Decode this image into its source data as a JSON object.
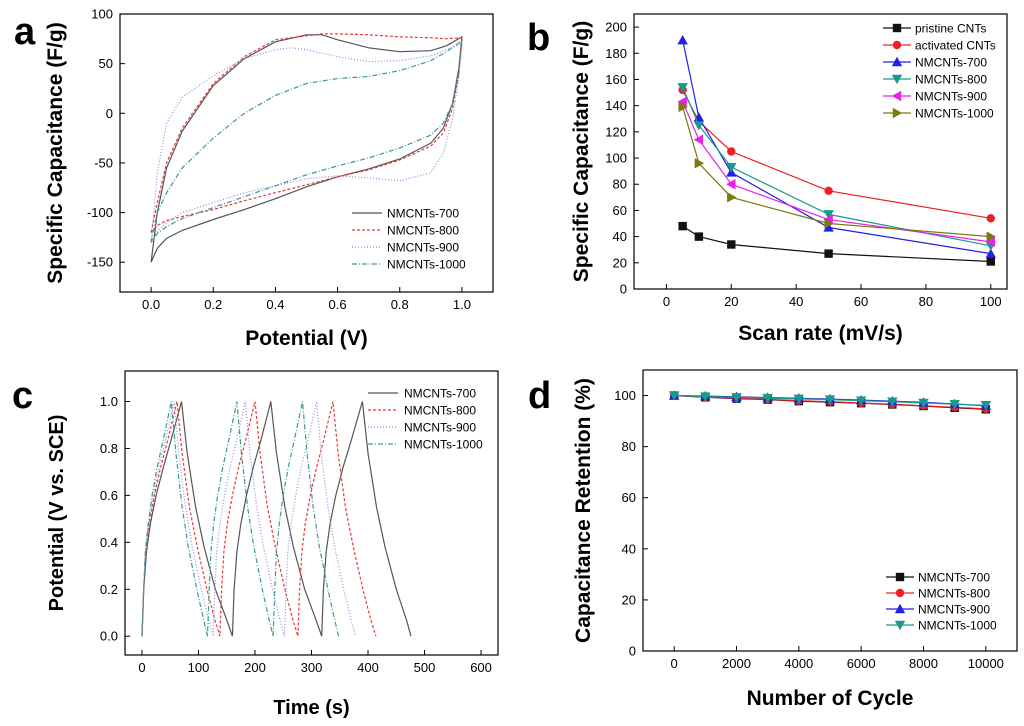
{
  "chart_data": [
    {
      "id": "a",
      "panel_label": "a",
      "type": "line",
      "xlabel": "Potential (V)",
      "ylabel": "Specific Capacitance (F/g)",
      "xlim": [
        -0.1,
        1.1
      ],
      "ylim": [
        -180,
        100
      ],
      "xticks": [
        0.0,
        0.2,
        0.4,
        0.6,
        0.8,
        1.0
      ],
      "xtick_labels": [
        "0.0",
        "0.2",
        "0.4",
        "0.6",
        "0.8",
        "1.0"
      ],
      "yticks": [
        -150,
        -100,
        -50,
        0,
        50,
        100
      ],
      "ytick_labels": [
        "-150",
        "-100",
        "-50",
        "0",
        "50",
        "100"
      ],
      "legend_position": "bottom-right",
      "series": [
        {
          "name": "NMCNTs-700",
          "color": "#555555",
          "dash": "none",
          "x": [
            0.0,
            0.02,
            0.05,
            0.1,
            0.2,
            0.3,
            0.4,
            0.5,
            0.55,
            0.6,
            0.7,
            0.8,
            0.9,
            0.95,
            1.0,
            1.0,
            0.99,
            0.97,
            0.94,
            0.9,
            0.8,
            0.7,
            0.6,
            0.5,
            0.4,
            0.3,
            0.2,
            0.1,
            0.05,
            0.02,
            0.0
          ],
          "y": [
            -150,
            -100,
            -55,
            -18,
            28,
            55,
            72,
            79,
            79,
            74,
            66,
            62,
            63,
            68,
            77,
            77,
            45,
            10,
            -15,
            -30,
            -46,
            -56,
            -64,
            -74,
            -86,
            -97,
            -107,
            -118,
            -126,
            -136,
            -150
          ]
        },
        {
          "name": "NMCNTs-800",
          "color": "#e83a3a",
          "dash": "3,2",
          "x": [
            0.0,
            0.02,
            0.05,
            0.1,
            0.2,
            0.3,
            0.4,
            0.5,
            0.55,
            0.6,
            0.7,
            0.8,
            0.9,
            0.95,
            1.0,
            1.0,
            0.99,
            0.97,
            0.94,
            0.9,
            0.8,
            0.7,
            0.6,
            0.5,
            0.4,
            0.3,
            0.2,
            0.1,
            0.05,
            0.02,
            0.0
          ],
          "y": [
            -120,
            -90,
            -50,
            -15,
            30,
            57,
            74,
            78,
            80,
            80,
            79,
            77,
            76,
            75,
            76,
            76,
            40,
            5,
            -20,
            -33,
            -47,
            -57,
            -64,
            -72,
            -80,
            -88,
            -97,
            -104,
            -108,
            -113,
            -120
          ]
        },
        {
          "name": "NMCNTs-900",
          "color": "#8a8ae8",
          "dash": "1,2",
          "x": [
            0.0,
            0.02,
            0.05,
            0.1,
            0.2,
            0.3,
            0.4,
            0.45,
            0.5,
            0.6,
            0.7,
            0.8,
            0.9,
            0.95,
            1.0,
            1.0,
            0.99,
            0.97,
            0.94,
            0.9,
            0.8,
            0.7,
            0.6,
            0.5,
            0.4,
            0.3,
            0.2,
            0.1,
            0.05,
            0.02,
            0.0
          ],
          "y": [
            -130,
            -60,
            -10,
            16,
            38,
            55,
            64,
            66,
            64,
            57,
            52,
            53,
            58,
            64,
            70,
            70,
            35,
            -5,
            -40,
            -60,
            -68,
            -65,
            -63,
            -66,
            -73,
            -80,
            -90,
            -100,
            -110,
            -119,
            -130
          ]
        },
        {
          "name": "NMCNTs-1000",
          "color": "#3a9a90",
          "dash": "5,2,1,2",
          "x": [
            0.0,
            0.02,
            0.05,
            0.1,
            0.2,
            0.3,
            0.4,
            0.5,
            0.6,
            0.7,
            0.8,
            0.9,
            0.95,
            1.0,
            1.0,
            0.99,
            0.97,
            0.94,
            0.9,
            0.8,
            0.7,
            0.6,
            0.5,
            0.4,
            0.3,
            0.2,
            0.1,
            0.05,
            0.02,
            0.0
          ],
          "y": [
            -130,
            -100,
            -80,
            -55,
            -25,
            0,
            18,
            30,
            35,
            37,
            43,
            53,
            62,
            73,
            73,
            40,
            10,
            -10,
            -22,
            -35,
            -45,
            -53,
            -62,
            -73,
            -84,
            -95,
            -106,
            -114,
            -121,
            -130
          ]
        }
      ]
    },
    {
      "id": "b",
      "panel_label": "b",
      "type": "line",
      "xlabel": "Scan rate (mV/s)",
      "ylabel": "Specific Capacitance (F/g)",
      "xlim": [
        -10,
        105
      ],
      "ylim": [
        0,
        210
      ],
      "xticks": [
        0,
        20,
        40,
        60,
        80,
        100
      ],
      "xtick_labels": [
        "0",
        "20",
        "40",
        "60",
        "80",
        "100"
      ],
      "yticks": [
        0,
        20,
        40,
        60,
        80,
        100,
        120,
        140,
        160,
        180,
        200
      ],
      "ytick_labels": [
        "0",
        "20",
        "40",
        "60",
        "80",
        "100",
        "120",
        "140",
        "160",
        "180",
        "200"
      ],
      "legend_position": "top-right",
      "series": [
        {
          "name": "pristine CNTs",
          "color": "#111111",
          "marker": "square",
          "x": [
            5,
            10,
            20,
            50,
            100
          ],
          "y": [
            48,
            40,
            34,
            27,
            21
          ]
        },
        {
          "name": "activated CNTs",
          "color": "#f02020",
          "marker": "circle",
          "x": [
            5,
            10,
            20,
            50,
            100
          ],
          "y": [
            152,
            128,
            105,
            75,
            54
          ]
        },
        {
          "name": "NMCNTs-700",
          "color": "#2020e8",
          "marker": "triangle-up",
          "x": [
            5,
            10,
            20,
            50,
            100
          ],
          "y": [
            190,
            131,
            89,
            47,
            27
          ]
        },
        {
          "name": "NMCNTs-800",
          "color": "#1a9a8a",
          "marker": "triangle-down",
          "x": [
            5,
            10,
            20,
            50,
            100
          ],
          "y": [
            154,
            125,
            93,
            57,
            33
          ]
        },
        {
          "name": "NMCNTs-900",
          "color": "#e820e8",
          "marker": "triangle-left",
          "x": [
            5,
            10,
            20,
            50,
            100
          ],
          "y": [
            143,
            114,
            80,
            53,
            36
          ]
        },
        {
          "name": "NMCNTs-1000",
          "color": "#7a7a10",
          "marker": "triangle-right",
          "x": [
            5,
            10,
            20,
            50,
            100
          ],
          "y": [
            139,
            96,
            70,
            50,
            40
          ]
        }
      ]
    },
    {
      "id": "c",
      "panel_label": "c",
      "type": "line",
      "xlabel": "Time (s)",
      "ylabel": "Potential (V vs. SCE)",
      "xlim": [
        -30,
        630
      ],
      "ylim": [
        -0.08,
        1.13
      ],
      "xticks": [
        0,
        100,
        200,
        300,
        400,
        500,
        600
      ],
      "xtick_labels": [
        "0",
        "100",
        "200",
        "300",
        "400",
        "500",
        "600"
      ],
      "yticks": [
        0.0,
        0.2,
        0.4,
        0.6,
        0.8,
        1.0
      ],
      "ytick_labels": [
        "0.0",
        "0.2",
        "0.4",
        "0.6",
        "0.8",
        "1.0"
      ],
      "legend_position": "top-right",
      "series": [
        {
          "name": "NMCNTs-700",
          "color": "#555555",
          "dash": "none",
          "x": [
            0,
            3,
            8,
            15,
            25,
            38,
            52,
            70,
            70,
            80,
            95,
            110,
            130,
            150,
            160,
            160,
            163,
            168,
            175,
            185,
            197,
            211,
            228,
            228,
            238,
            253,
            268,
            288,
            308,
            318,
            318,
            321,
            326,
            333,
            343,
            356,
            371,
            390,
            390,
            400,
            415,
            430,
            450,
            468,
            476
          ],
          "y": [
            0,
            0.2,
            0.36,
            0.48,
            0.6,
            0.72,
            0.84,
            1.0,
            1.0,
            0.78,
            0.55,
            0.38,
            0.2,
            0.07,
            0,
            0,
            0.2,
            0.36,
            0.48,
            0.6,
            0.72,
            0.84,
            1.0,
            1.0,
            0.78,
            0.55,
            0.38,
            0.2,
            0.07,
            0,
            0,
            0.2,
            0.36,
            0.48,
            0.6,
            0.72,
            0.84,
            1.0,
            1.0,
            0.78,
            0.55,
            0.38,
            0.2,
            0.07,
            0
          ]
        },
        {
          "name": "NMCNTs-800",
          "color": "#e83a3a",
          "dash": "3,2",
          "x": [
            0,
            3,
            7,
            13,
            22,
            33,
            46,
            62,
            62,
            71,
            84,
            98,
            115,
            129,
            138,
            138,
            141,
            145,
            151,
            160,
            171,
            184,
            200,
            200,
            209,
            222,
            236,
            253,
            267,
            276,
            276,
            279,
            283,
            289,
            298,
            309,
            322,
            338,
            338,
            347,
            360,
            374,
            391,
            405,
            414
          ],
          "y": [
            0,
            0.2,
            0.36,
            0.48,
            0.6,
            0.72,
            0.84,
            1.0,
            1.0,
            0.78,
            0.55,
            0.38,
            0.2,
            0.07,
            0,
            0,
            0.2,
            0.36,
            0.48,
            0.6,
            0.72,
            0.84,
            1.0,
            1.0,
            0.78,
            0.55,
            0.38,
            0.2,
            0.07,
            0,
            0,
            0.2,
            0.36,
            0.48,
            0.6,
            0.72,
            0.84,
            1.0,
            1.0,
            0.78,
            0.55,
            0.38,
            0.2,
            0.07,
            0
          ]
        },
        {
          "name": "NMCNTs-900",
          "color": "#8a8ae8",
          "dash": "1,2",
          "x": [
            0,
            3,
            6,
            12,
            20,
            30,
            42,
            57,
            57,
            65,
            77,
            89,
            105,
            118,
            126,
            126,
            129,
            132,
            138,
            146,
            156,
            168,
            183,
            183,
            191,
            203,
            215,
            231,
            244,
            252,
            252,
            255,
            258,
            264,
            272,
            282,
            294,
            309,
            309,
            317,
            329,
            341,
            357,
            370,
            378
          ],
          "y": [
            0,
            0.2,
            0.36,
            0.48,
            0.6,
            0.72,
            0.84,
            1.0,
            1.0,
            0.78,
            0.55,
            0.38,
            0.2,
            0.07,
            0,
            0,
            0.2,
            0.36,
            0.48,
            0.6,
            0.72,
            0.84,
            1.0,
            1.0,
            0.78,
            0.55,
            0.38,
            0.2,
            0.07,
            0,
            0,
            0.2,
            0.36,
            0.48,
            0.6,
            0.72,
            0.84,
            1.0,
            1.0,
            0.78,
            0.55,
            0.38,
            0.2,
            0.07,
            0
          ]
        },
        {
          "name": "NMCNTs-1000",
          "color": "#3a9a90",
          "dash": "5,2,1,2",
          "x": [
            0,
            3,
            6,
            11,
            18,
            27,
            38,
            52,
            52,
            60,
            71,
            82,
            97,
            109,
            116,
            116,
            119,
            122,
            127,
            134,
            143,
            154,
            168,
            168,
            176,
            187,
            198,
            213,
            225,
            232,
            232,
            235,
            238,
            243,
            250,
            259,
            270,
            284,
            284,
            292,
            303,
            314,
            329,
            341,
            348
          ],
          "y": [
            0,
            0.2,
            0.36,
            0.48,
            0.6,
            0.72,
            0.84,
            1.0,
            1.0,
            0.78,
            0.55,
            0.38,
            0.2,
            0.07,
            0,
            0,
            0.2,
            0.36,
            0.48,
            0.6,
            0.72,
            0.84,
            1.0,
            1.0,
            0.78,
            0.55,
            0.38,
            0.2,
            0.07,
            0,
            0,
            0.2,
            0.36,
            0.48,
            0.6,
            0.72,
            0.84,
            1.0,
            1.0,
            0.78,
            0.55,
            0.38,
            0.2,
            0.07,
            0
          ]
        }
      ]
    },
    {
      "id": "d",
      "panel_label": "d",
      "type": "line",
      "xlabel": "Number of Cycle",
      "ylabel": "Capacitance Retention (%)",
      "xlim": [
        -1000,
        11000
      ],
      "ylim": [
        0,
        110
      ],
      "xticks": [
        0,
        2000,
        4000,
        6000,
        8000,
        10000
      ],
      "xtick_labels": [
        "0",
        "2000",
        "4000",
        "6000",
        "8000",
        "10000"
      ],
      "yticks": [
        0,
        20,
        40,
        60,
        80,
        100
      ],
      "ytick_labels": [
        "0",
        "20",
        "40",
        "60",
        "80",
        "100"
      ],
      "legend_position": "bottom-right",
      "series": [
        {
          "name": "NMCNTs-700",
          "color": "#111111",
          "marker": "square",
          "x": [
            0,
            1000,
            2000,
            3000,
            4000,
            5000,
            6000,
            7000,
            8000,
            9000,
            10000
          ],
          "y": [
            100,
            99.3,
            98.8,
            98.4,
            97.8,
            97.4,
            97.0,
            96.5,
            95.9,
            95.2,
            94.6
          ]
        },
        {
          "name": "NMCNTs-800",
          "color": "#f02020",
          "marker": "circle",
          "x": [
            0,
            1000,
            2000,
            3000,
            4000,
            5000,
            6000,
            7000,
            8000,
            9000,
            10000
          ],
          "y": [
            100,
            99.4,
            99.0,
            98.5,
            98.0,
            97.6,
            97.1,
            96.6,
            96.0,
            95.4,
            94.8
          ]
        },
        {
          "name": "NMCNTs-900",
          "color": "#2020e8",
          "marker": "triangle-up",
          "x": [
            0,
            1000,
            2000,
            3000,
            4000,
            5000,
            6000,
            7000,
            8000,
            9000,
            10000
          ],
          "y": [
            100,
            99.8,
            99.5,
            99.2,
            98.9,
            98.6,
            98.2,
            97.8,
            97.3,
            96.7,
            96.0
          ]
        },
        {
          "name": "NMCNTs-1000",
          "color": "#1a9a8a",
          "marker": "triangle-down",
          "x": [
            0,
            1000,
            2000,
            3000,
            4000,
            5000,
            6000,
            7000,
            8000,
            9000,
            10000
          ],
          "y": [
            100,
            99.6,
            99.3,
            99.0,
            98.7,
            98.4,
            98.0,
            97.6,
            97.1,
            96.6,
            96.2
          ]
        }
      ]
    }
  ]
}
